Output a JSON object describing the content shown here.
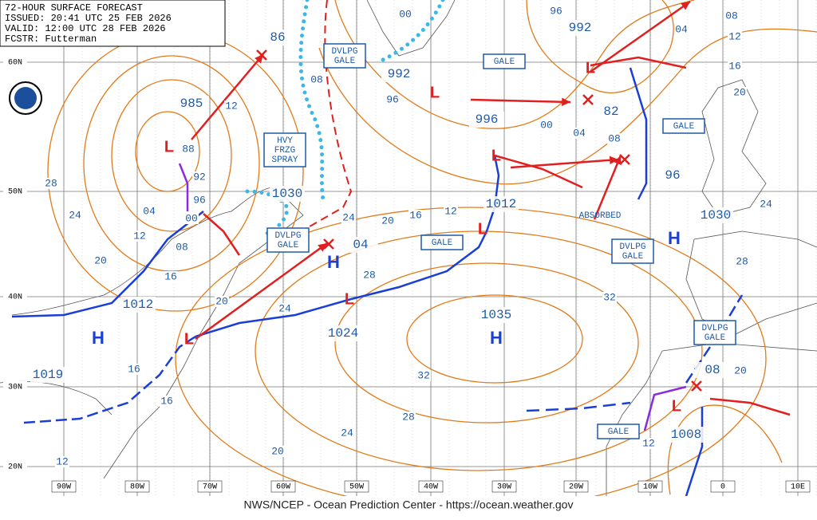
{
  "header": {
    "lines": [
      "72-HOUR SURFACE FORECAST",
      "ISSUED: 20:41 UTC 25 FEB 2026",
      "VALID: 12:00 UTC 28 FEB 2026",
      "FCSTR: Futterman"
    ]
  },
  "footer": "NWS/NCEP - Ocean Prediction Center - https://ocean.weather.gov",
  "latitude_labels": [
    "60N",
    "50N",
    "40N",
    "30N",
    "20N"
  ],
  "longitude_labels": [
    "90W",
    "80W",
    "70W",
    "60W",
    "50W",
    "40W",
    "30W",
    "20W",
    "10W",
    "0",
    "10E"
  ],
  "center_pressures": [
    "86",
    "985",
    "1030",
    "1012",
    "1019",
    "1024",
    "1035",
    "996",
    "992",
    "992",
    "82",
    "96",
    "1012",
    "1030",
    "04",
    "08",
    "1008"
  ],
  "isobar_labels": [
    "12",
    "88",
    "92",
    "96",
    "00",
    "04",
    "08",
    "12",
    "16",
    "20",
    "24",
    "28",
    "20",
    "24",
    "28",
    "24",
    "20",
    "16",
    "12",
    "96",
    "00",
    "96",
    "00",
    "04",
    "08",
    "04",
    "08",
    "12",
    "16",
    "20",
    "24",
    "28",
    "32",
    "32",
    "28",
    "24",
    "20",
    "16",
    "16",
    "12",
    "20",
    "12",
    "08"
  ],
  "boxed_notes": [
    [
      "GALE"
    ],
    [
      "DVLPG",
      "GALE"
    ],
    [
      "HVY",
      "FRZG",
      "SPRAY"
    ],
    [
      "DVLPG",
      "GALE"
    ],
    [
      "GALE"
    ],
    [
      "GALE"
    ],
    [
      "DVLPG",
      "GALE"
    ],
    [
      "DVLPG",
      "GALE"
    ],
    [
      "GALE"
    ]
  ],
  "notes": [
    "ABSORBED"
  ],
  "highs": [
    "H",
    "H",
    "H",
    "H"
  ],
  "lows": [
    "L",
    "L",
    "L",
    "L",
    "L",
    "L",
    "L",
    "L"
  ]
}
